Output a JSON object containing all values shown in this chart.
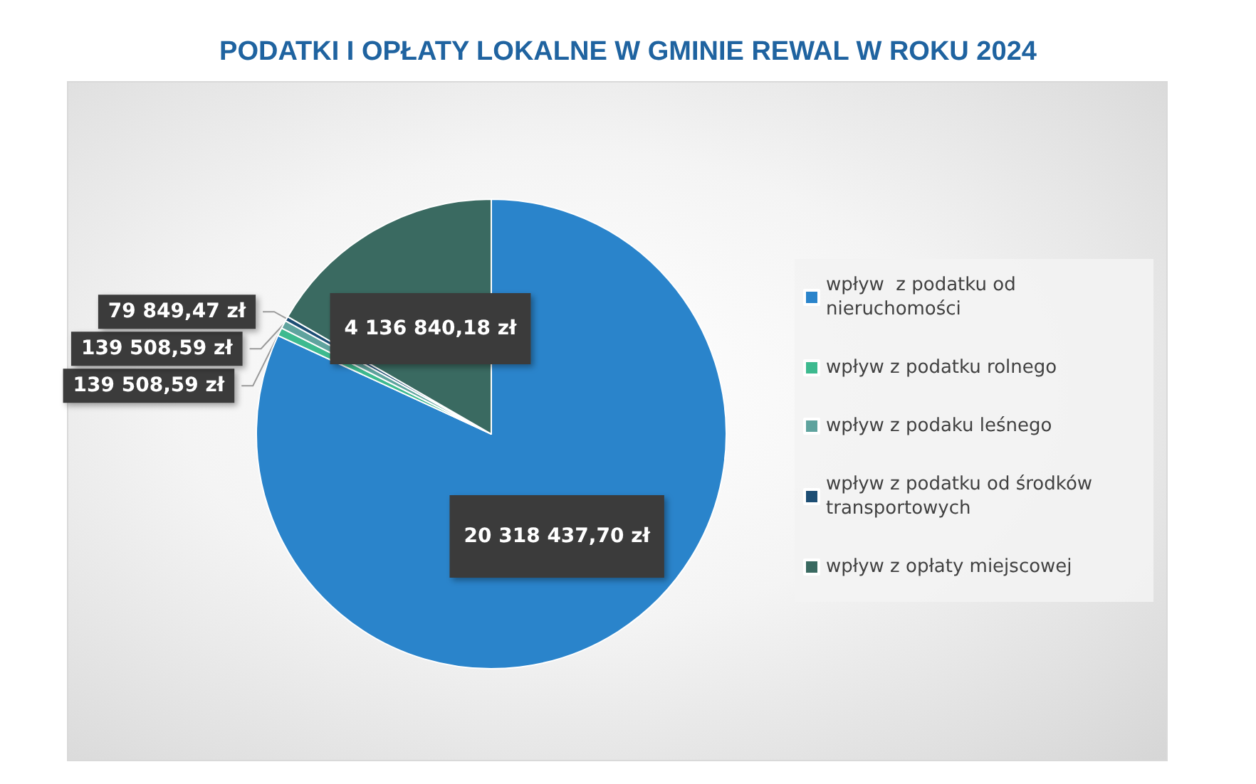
{
  "chart_data": {
    "type": "pie",
    "title": "PODATKI I OPŁATY LOKALNE W GMINIE REWAL W ROKU 2024",
    "categories": [
      "wpływ  z podatku od nieruchomości",
      "wpływ z podatku rolnego",
      "wpływ z podaku leśnego",
      "wpływ z podatku od środków transportowych",
      "wpływ z opłaty miejscowej"
    ],
    "values": [
      20318437.7,
      139508.59,
      139508.59,
      79849.47,
      4136840.18
    ],
    "value_labels": [
      "20 318 437,70 zł",
      "139 508,59 zł",
      "139 508,59 zł",
      "79 849,47 zł",
      "4 136 840,18 zł"
    ],
    "colors": [
      "#2a84cb",
      "#3dba8f",
      "#5fa39e",
      "#1d4e74",
      "#3a6a61"
    ],
    "legend": "right"
  }
}
